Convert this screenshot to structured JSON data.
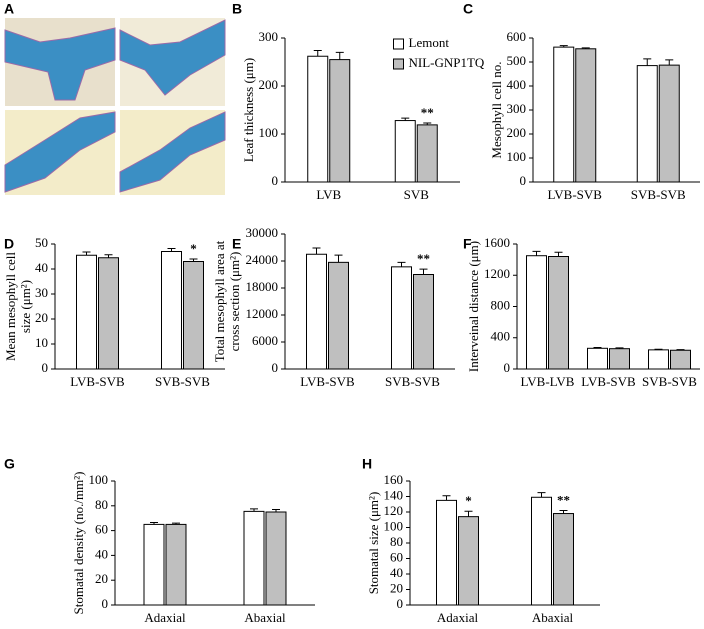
{
  "image_panel": {
    "label": "A"
  },
  "chart_data": [
    {
      "label": "B",
      "type": "bar",
      "ylabel": [
        "Leaf thickness (μm)"
      ],
      "categories": [
        "LVB",
        "SVB"
      ],
      "series": [
        {
          "name": "Lemont",
          "color": "#ffffff",
          "values": [
            262,
            128
          ],
          "errors": [
            12,
            5
          ]
        },
        {
          "name": "NIL-GNP1TQ",
          "color": "#bfbfbf",
          "values": [
            255,
            119
          ],
          "errors": [
            15,
            4
          ],
          "annotations": [
            null,
            "**"
          ]
        }
      ],
      "ylim": [
        0,
        300
      ],
      "yticks": [
        0,
        100,
        200,
        300
      ],
      "legend": "top-right"
    },
    {
      "label": "C",
      "type": "bar",
      "ylabel": [
        "Mesophyll cell no."
      ],
      "categories": [
        "LVB-SVB",
        "SVB-SVB"
      ],
      "series": [
        {
          "color": "#ffffff",
          "values": [
            562,
            485
          ],
          "errors": [
            6,
            28
          ]
        },
        {
          "color": "#bfbfbf",
          "values": [
            555,
            487
          ],
          "errors": [
            4,
            22
          ]
        }
      ],
      "ylim": [
        0,
        600
      ],
      "yticks": [
        0,
        100,
        200,
        300,
        400,
        500,
        600
      ]
    },
    {
      "label": "D",
      "type": "bar",
      "ylabel": [
        "Mean mesophyll cell",
        "size (μm²)"
      ],
      "categories": [
        "LVB-SVB",
        "SVB-SVB"
      ],
      "series": [
        {
          "color": "#ffffff",
          "values": [
            45.5,
            47
          ],
          "errors": [
            1.3,
            1.2
          ]
        },
        {
          "color": "#bfbfbf",
          "values": [
            44.5,
            43
          ],
          "errors": [
            1.2,
            1
          ],
          "annotations": [
            null,
            "*"
          ]
        }
      ],
      "ylim": [
        0,
        50
      ],
      "yticks": [
        0,
        10,
        20,
        30,
        40,
        50
      ]
    },
    {
      "label": "E",
      "type": "bar",
      "ylabel": [
        "Total mesophyll area at",
        "cross section (μm²)"
      ],
      "categories": [
        "LVB-SVB",
        "SVB-SVB"
      ],
      "series": [
        {
          "color": "#ffffff",
          "values": [
            25500,
            22700
          ],
          "errors": [
            1400,
            1000
          ]
        },
        {
          "color": "#bfbfbf",
          "values": [
            23700,
            21000
          ],
          "errors": [
            1600,
            1200
          ],
          "annotations": [
            null,
            "**"
          ]
        }
      ],
      "ylim": [
        0,
        30000
      ],
      "yticks": [
        0,
        6000,
        12000,
        18000,
        24000,
        30000
      ]
    },
    {
      "label": "F",
      "type": "bar",
      "ylabel": [
        "Interveinal distance (μm)"
      ],
      "categories": [
        "LVB-LVB",
        "LVB-SVB",
        "SVB-SVB"
      ],
      "series": [
        {
          "color": "#ffffff",
          "values": [
            1450,
            265,
            245
          ],
          "errors": [
            55,
            10,
            8
          ]
        },
        {
          "color": "#bfbfbf",
          "values": [
            1440,
            260,
            240
          ],
          "errors": [
            55,
            10,
            8
          ]
        }
      ],
      "ylim": [
        0,
        1600
      ],
      "yticks": [
        0,
        400,
        800,
        1200,
        1600
      ]
    },
    {
      "label": "G",
      "type": "bar",
      "ylabel": [
        "Stomatal density (no./mm²)"
      ],
      "categories": [
        "Adaxial",
        "Abaxial"
      ],
      "series": [
        {
          "color": "#ffffff",
          "values": [
            65,
            75.5
          ],
          "errors": [
            1.5,
            2
          ]
        },
        {
          "color": "#bfbfbf",
          "values": [
            65,
            75
          ],
          "errors": [
            1,
            2
          ]
        }
      ],
      "ylim": [
        0,
        100
      ],
      "yticks": [
        0,
        20,
        40,
        60,
        80,
        100
      ]
    },
    {
      "label": "H",
      "type": "bar",
      "ylabel": [
        "Stomatal size (μm²)"
      ],
      "categories": [
        "Adaxial",
        "Abaxial"
      ],
      "series": [
        {
          "color": "#ffffff",
          "values": [
            135,
            139
          ],
          "errors": [
            6,
            6
          ]
        },
        {
          "color": "#bfbfbf",
          "values": [
            114,
            118
          ],
          "errors": [
            7,
            4
          ],
          "annotations": [
            "*",
            "**"
          ]
        }
      ],
      "ylim": [
        0,
        160
      ],
      "yticks": [
        0,
        20,
        40,
        60,
        80,
        100,
        120,
        140,
        160
      ]
    }
  ]
}
